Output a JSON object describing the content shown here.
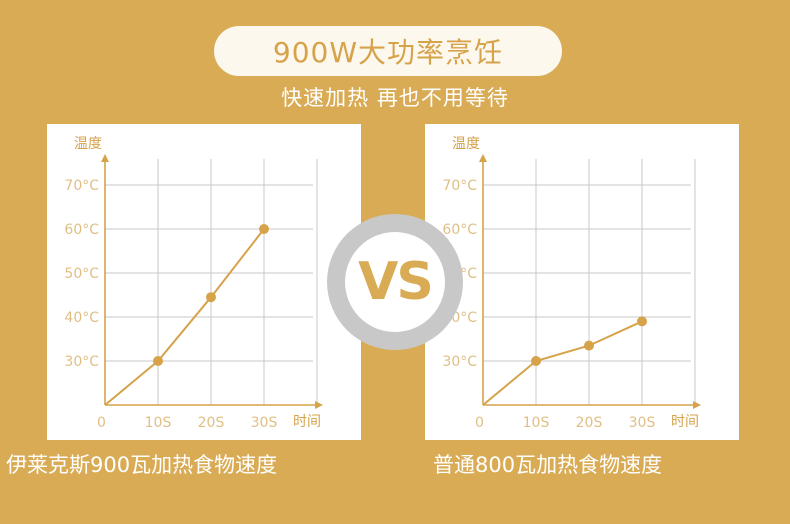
{
  "header": {
    "title": "900W大功率烹饪",
    "subtitle": "快速加热 再也不用等待"
  },
  "vs_label": "VS",
  "colors": {
    "background": "#d9ab55",
    "accent": "#d6a24a",
    "grid": "#c9c9c9",
    "tick_text": "#e0bf85",
    "panel": "#ffffff"
  },
  "chart_data": [
    {
      "type": "line",
      "caption": "伊莱克斯900瓦加热食物速度",
      "ylabel": "温度",
      "xlabel": "时间",
      "origin_label": "0",
      "x_ticks": [
        "10S",
        "20S",
        "30S"
      ],
      "y_ticks": [
        "30°C",
        "40°C",
        "50°C",
        "60°C",
        "70°C"
      ],
      "x": [
        0,
        10,
        20,
        30
      ],
      "y": [
        20,
        30,
        44.5,
        60
      ],
      "xlim": [
        0,
        40
      ],
      "ylim": [
        20,
        75
      ],
      "grid": true
    },
    {
      "type": "line",
      "caption": "普通800瓦加热食物速度",
      "ylabel": "温度",
      "xlabel": "时间",
      "origin_label": "0",
      "x_ticks": [
        "10S",
        "20S",
        "30S"
      ],
      "y_ticks": [
        "30°C",
        "40°C",
        "50°C",
        "60°C",
        "70°C"
      ],
      "x": [
        0,
        10,
        20,
        30
      ],
      "y": [
        20,
        30,
        33.5,
        39
      ],
      "xlim": [
        0,
        40
      ],
      "ylim": [
        20,
        75
      ],
      "grid": true
    }
  ]
}
